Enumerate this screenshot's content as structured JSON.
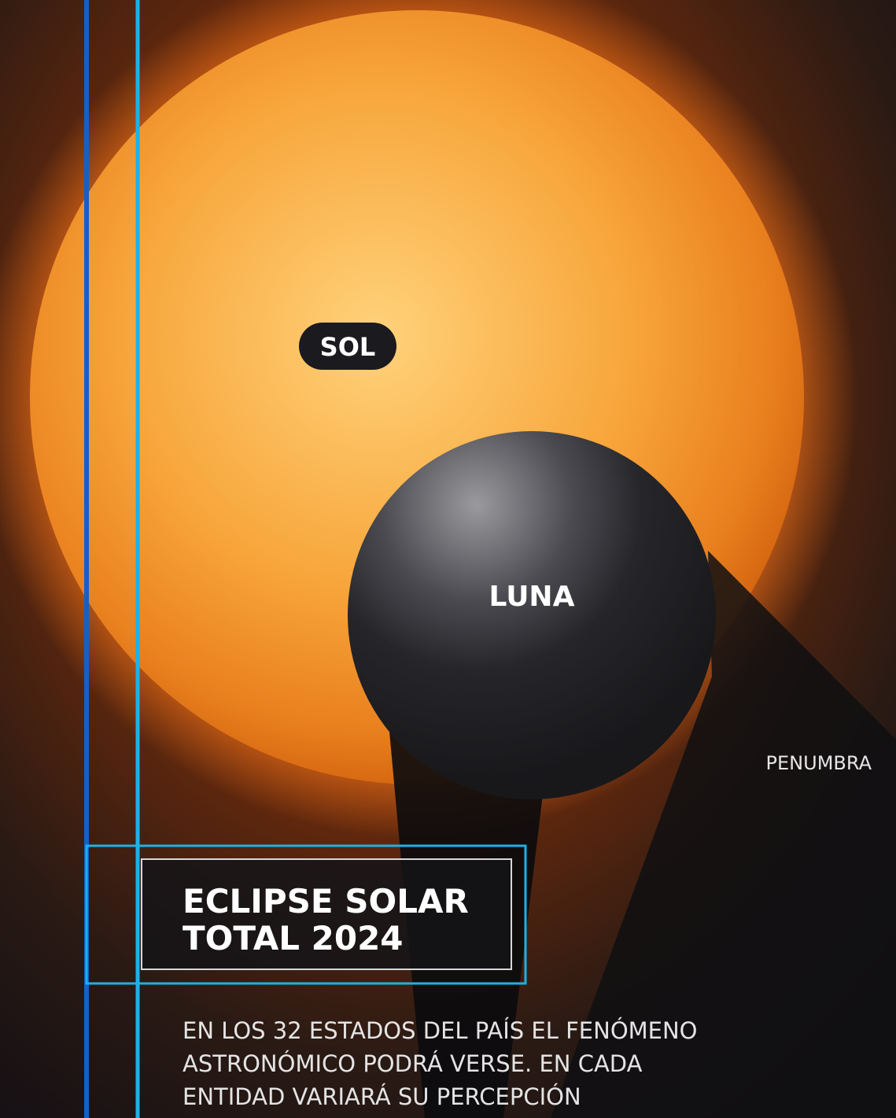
{
  "labels": {
    "sun": "SOL",
    "moon": "LUNA",
    "penumbra": "PENUMBRA"
  },
  "title": {
    "lines": [
      "ECLIPSE SOLAR",
      "TOTAL 2024"
    ]
  },
  "description": {
    "lines": [
      "EN LOS 32 ESTADOS DEL PAÍS EL FENÓMENO",
      "ASTRONÓMICO PODRÁ VERSE. EN CADA",
      "ENTIDAD VARIARÁ SU PERCEPCIÓN"
    ]
  }
}
